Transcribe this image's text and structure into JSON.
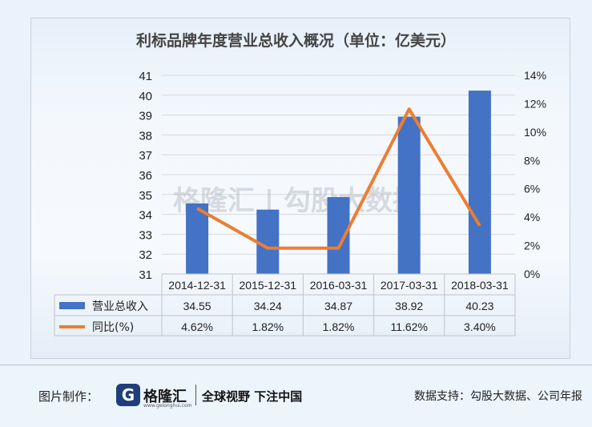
{
  "chart_data": {
    "type": "bar+line",
    "title": "利标品牌年度营业总收入概况（单位：亿美元）",
    "categories": [
      "2014-12-31",
      "2015-12-31",
      "2016-03-31",
      "2017-03-31",
      "2018-03-31"
    ],
    "series": [
      {
        "name": "营业总收入",
        "type": "bar",
        "axis": "left",
        "values": [
          34.55,
          34.24,
          34.87,
          38.92,
          40.23
        ],
        "labels": [
          "34.55",
          "34.24",
          "34.87",
          "38.92",
          "40.23"
        ],
        "color": "#4472c4"
      },
      {
        "name": "同比(%)",
        "type": "line",
        "axis": "right",
        "values": [
          4.62,
          1.82,
          1.82,
          11.62,
          3.4
        ],
        "labels": [
          "4.62%",
          "1.82%",
          "1.82%",
          "11.62%",
          "3.40%"
        ],
        "color": "#ed7d31"
      }
    ],
    "y_left": {
      "min": 31,
      "max": 41,
      "step": 1
    },
    "y_right": {
      "min": 0,
      "max": 14,
      "step": 2,
      "suffix": "%"
    },
    "data_table": true
  },
  "watermark": "格隆汇 | 勾股大数据",
  "footer": {
    "credit_label": "图片制作：",
    "logo_mark": "G",
    "logo_text": "格隆汇",
    "logo_url": "www.gelonghui.com",
    "slogan": "全球视野 下注中国",
    "source": "数据支持：勾股大数据、公司年报"
  }
}
